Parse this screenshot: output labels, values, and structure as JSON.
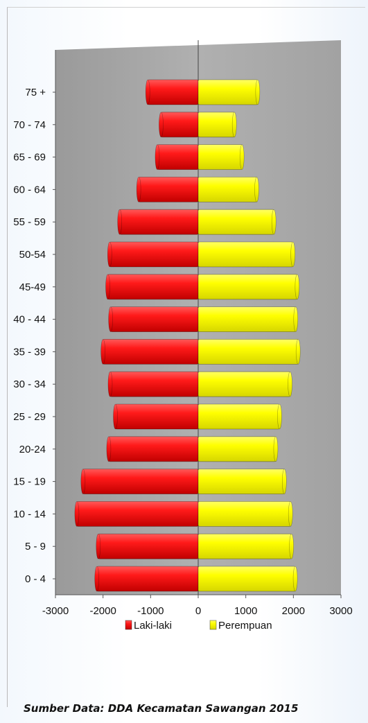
{
  "chart_data": {
    "type": "bar",
    "orientation": "horizontal",
    "categories": [
      "0 - 4",
      "5 - 9",
      "10 - 14",
      "15 - 19",
      "20-24",
      "25 - 29",
      "30 - 34",
      "35 - 39",
      "40 - 44",
      "45-49",
      "50-54",
      "55 - 59",
      "60 - 64",
      "65 - 69",
      "70 - 74",
      "75 +"
    ],
    "series": [
      {
        "name": "Laki-laki",
        "color": "#ff1a1a",
        "values": [
          -2130,
          -2100,
          -2550,
          -2420,
          -1880,
          -1740,
          -1850,
          -2000,
          -1840,
          -1900,
          -1860,
          -1650,
          -1250,
          -860,
          -780,
          -1060
        ]
      },
      {
        "name": "Perempuan",
        "color": "#ffff00",
        "values": [
          2040,
          1960,
          1940,
          1810,
          1630,
          1710,
          1930,
          2100,
          2050,
          2080,
          1990,
          1590,
          1230,
          920,
          760,
          1250
        ]
      }
    ],
    "xlim": [
      -3000,
      3000
    ],
    "xticks": [
      -3000,
      -2000,
      -1000,
      0,
      1000,
      2000,
      3000
    ],
    "xtick_labels": [
      "-3000",
      "-2000",
      "-1000",
      "0",
      "1000",
      "2000",
      "3000"
    ],
    "grid": false,
    "legend_position": "bottom",
    "plot_background": "#a6a6a6"
  },
  "source_text": "Sumber Data: DDA Kecamatan Sawangan 2015"
}
